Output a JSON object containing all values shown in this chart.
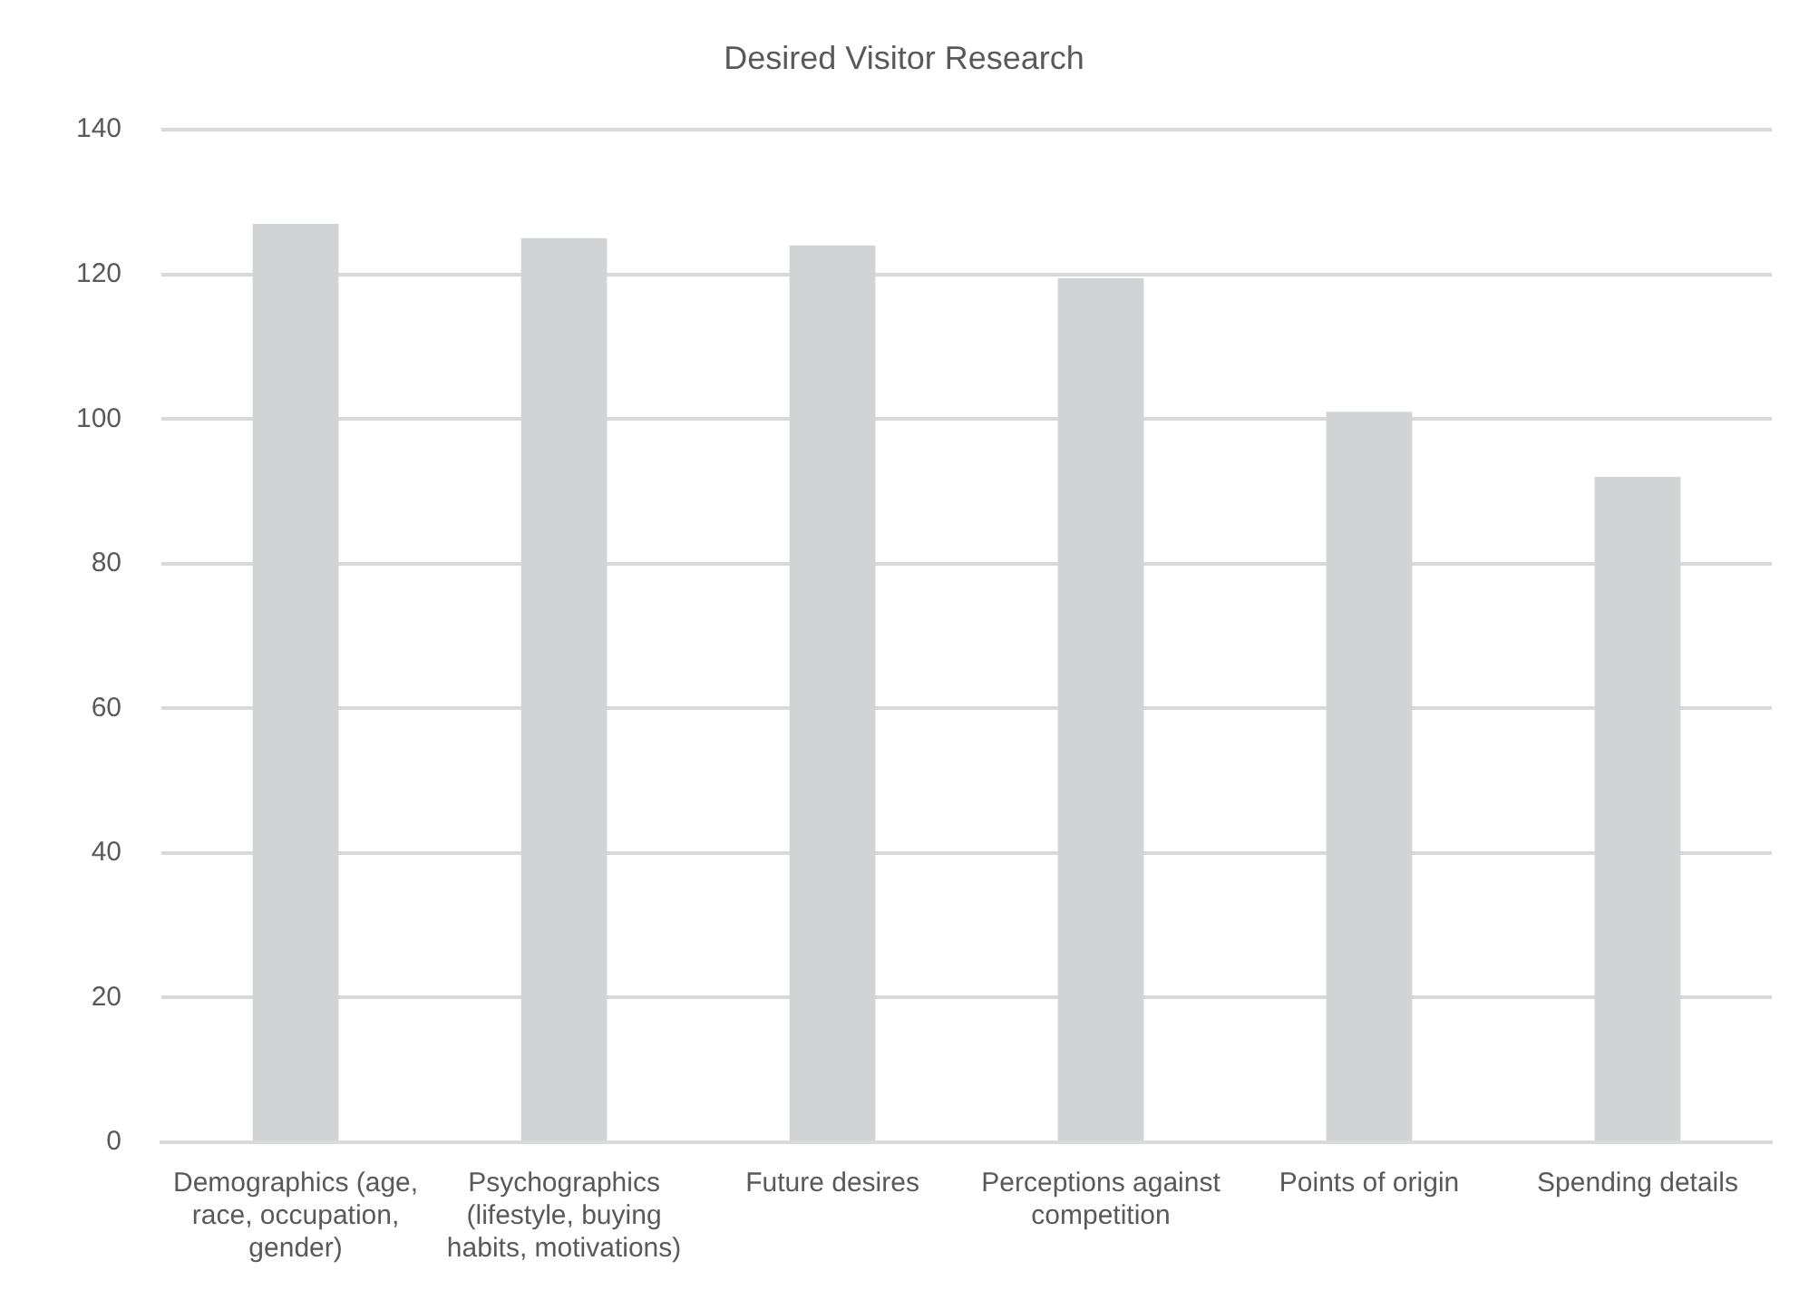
{
  "chart_data": {
    "type": "bar",
    "title": "Desired Visitor Research",
    "categories": [
      "Demographics (age, race, occupation, gender)",
      "Psychographics (lifestyle, buying habits, motivations)",
      "Future desires",
      "Perceptions against competition",
      "Points of origin",
      "Spending details"
    ],
    "values": [
      127,
      125,
      124,
      119.5,
      101,
      92
    ],
    "color": "#d2d3d5",
    "ylim": [
      0,
      140
    ],
    "yticks": [
      0,
      20,
      40,
      60,
      80,
      100,
      120,
      140
    ],
    "grid": "y",
    "legend": false
  }
}
